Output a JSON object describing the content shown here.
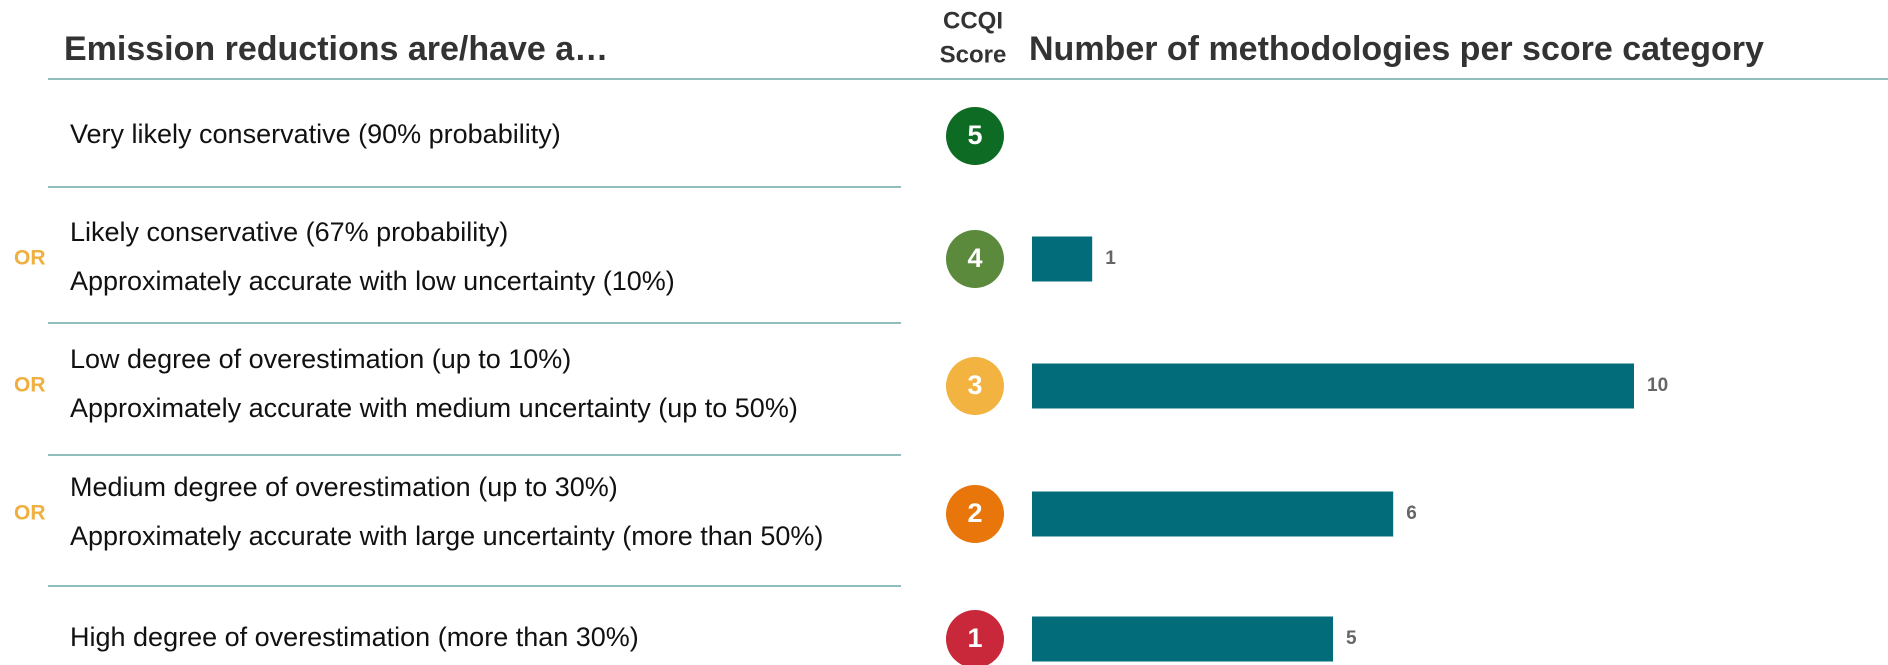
{
  "chart_data": {
    "type": "bar",
    "left_header": "Emission reductions are/have a…",
    "score_header": [
      "CCQI",
      "Score"
    ],
    "title": "Number of methodologies per score category",
    "or_label": "OR",
    "categories": [
      "5",
      "4",
      "3",
      "2",
      "1"
    ],
    "category_colors": [
      "#0e6b24",
      "#5b8a3c",
      "#f2b340",
      "#e8760b",
      "#c8283a"
    ],
    "descriptions": [
      [
        "Very likely conservative (90% probability)"
      ],
      [
        "Likely conservative (67% probability)",
        "Approximately accurate with low uncertainty (10%)"
      ],
      [
        "Low degree of overestimation (up to 10%)",
        "Approximately accurate with medium uncertainty (up to 50%)"
      ],
      [
        "Medium degree of overestimation (up to 30%)",
        "Approximately accurate with large uncertainty (more than 50%)"
      ],
      [
        "High degree of overestimation (more than 30%)"
      ]
    ],
    "values": [
      null,
      1,
      10,
      6,
      5
    ],
    "color": "#036c7a"
  }
}
